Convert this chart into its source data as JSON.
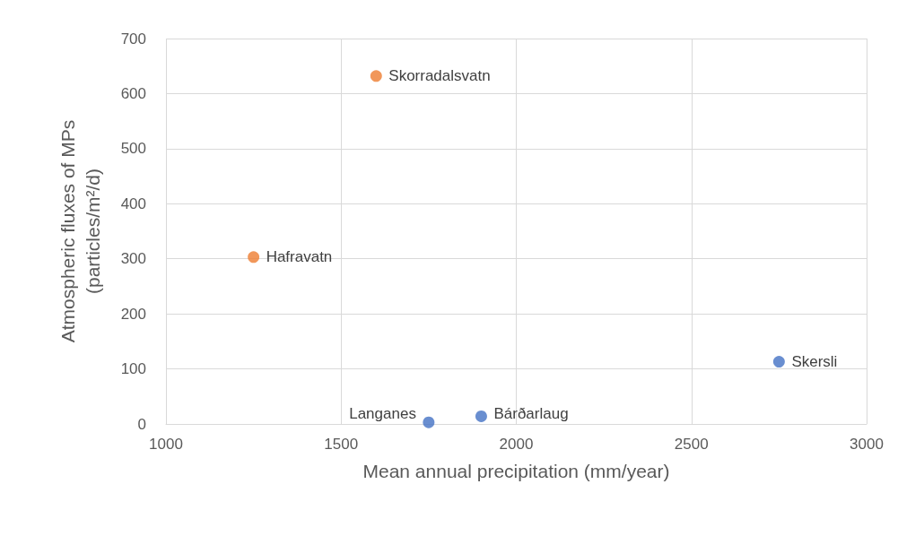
{
  "chart_data": {
    "type": "scatter",
    "xlabel": "Mean annual precipitation (mm/year)",
    "ylabel": "Atmospheric fluxes of MPs\n(particles/m²/d)",
    "series": [
      {
        "color": "#ed7d31",
        "x": [
          1600,
          1250
        ],
        "values": [
          632,
          303
        ]
      },
      {
        "color": "#4472c4",
        "x": [
          2750,
          1750,
          1900
        ],
        "values": [
          113,
          3,
          14
        ]
      }
    ],
    "annotations": [
      {
        "text": "Skorradalsvatn",
        "x": 1600,
        "y": 632
      },
      {
        "text": "Hafravatn",
        "x": 1250,
        "y": 303
      },
      {
        "text": "Skersli",
        "x": 2750,
        "y": 113
      },
      {
        "text": "Langanes",
        "x": 1750,
        "y": 3
      },
      {
        "text": "Bárðarlaug",
        "x": 1900,
        "y": 14
      }
    ],
    "xlim": [
      1000,
      3000
    ],
    "xticks": [
      1000,
      1500,
      2000,
      2500,
      3000
    ],
    "ylim": [
      0,
      700
    ],
    "yticks": [
      0,
      100,
      200,
      300,
      400,
      500,
      600,
      700
    ],
    "grid": true,
    "marker": "circle"
  }
}
